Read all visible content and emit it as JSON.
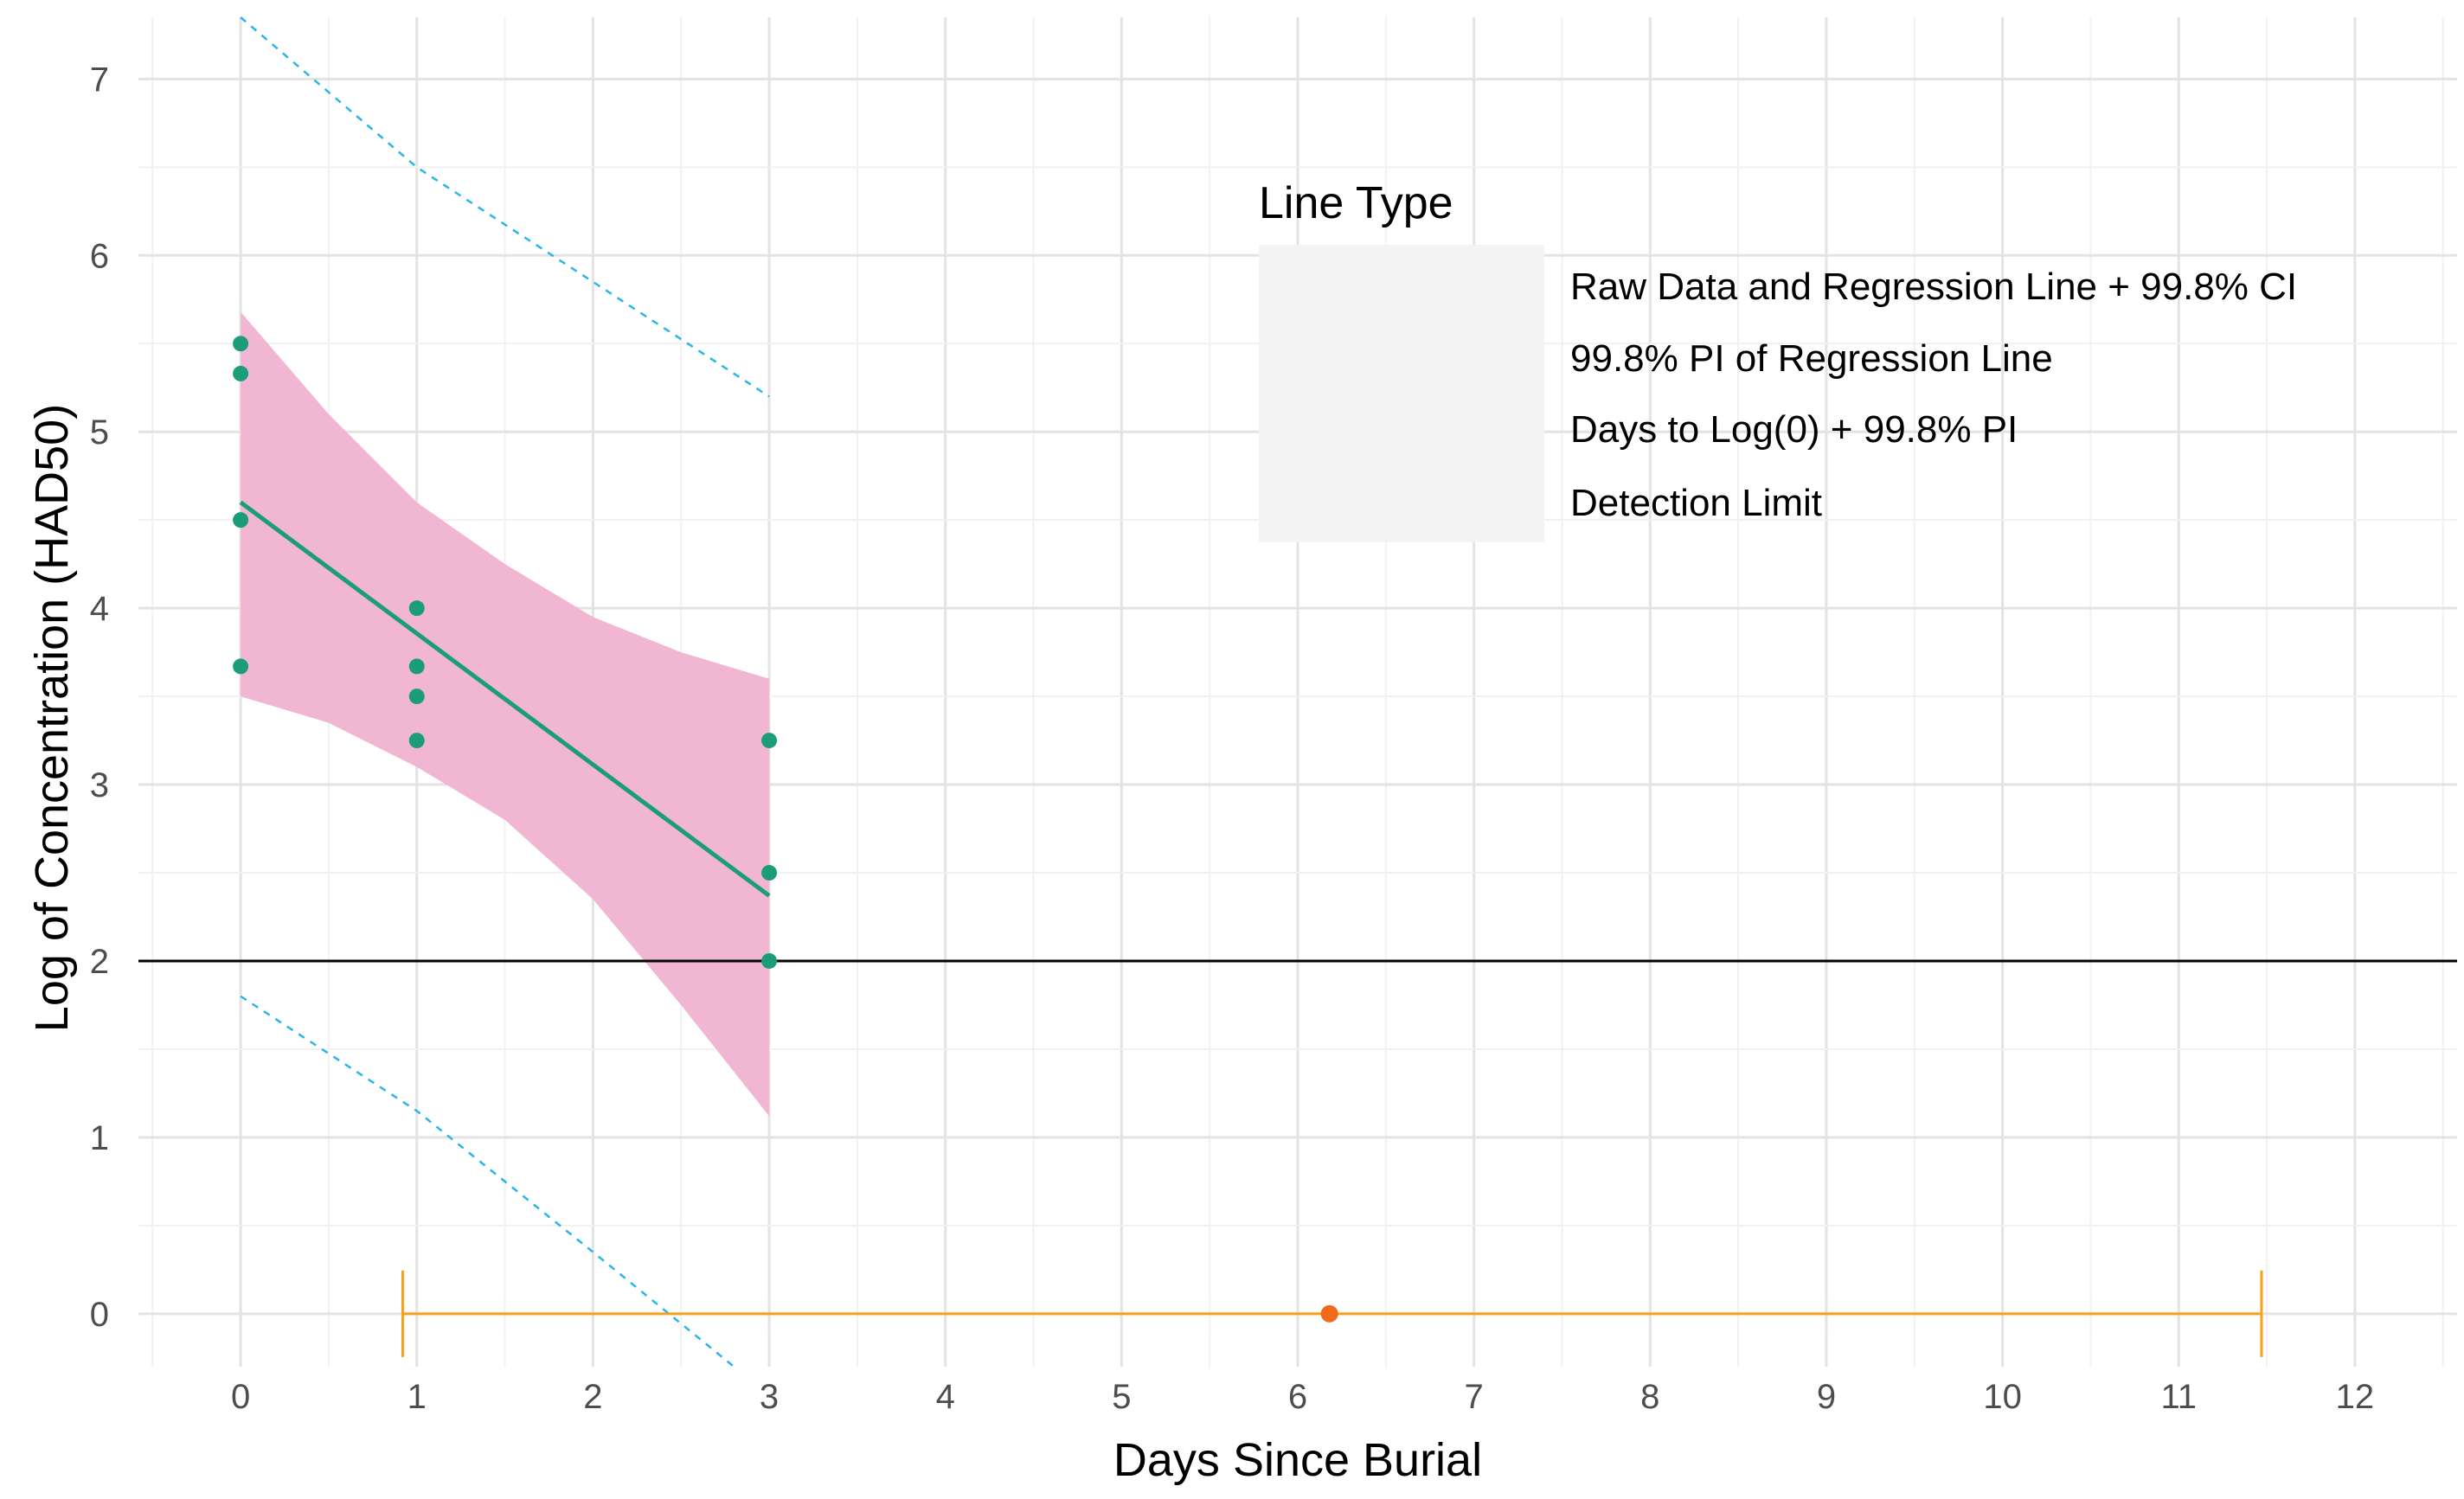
{
  "chart_data": {
    "type": "line",
    "xlabel": "Days Since Burial",
    "ylabel": "Log of Concentration (HAD50)",
    "xlim": [
      -0.58,
      12.58
    ],
    "ylim": [
      -0.3,
      7.35
    ],
    "x_ticks": [
      0,
      1,
      2,
      3,
      4,
      5,
      6,
      7,
      8,
      9,
      10,
      11,
      12
    ],
    "y_ticks": [
      0,
      1,
      2,
      3,
      4,
      5,
      6,
      7
    ],
    "grid": true,
    "legend": {
      "title": "Line Type",
      "placement": "top-right",
      "entries": [
        {
          "label": "Raw Data and Regression Line + 99.8% CI",
          "color": "#1b9e77",
          "fill": "#f1b6d2",
          "style": "solid-points"
        },
        {
          "label": "99.8% PI of Regression Line",
          "color": "#29b6e8",
          "style": "dashed"
        },
        {
          "label": "Days to Log(0) + 99.8% PI",
          "color": "#f7a11a",
          "style": "solid-points"
        },
        {
          "label": "Detection Limit",
          "color": "#000000",
          "style": "solid"
        }
      ]
    },
    "series": [
      {
        "name": "Raw Data and Regression Line + 99.8% CI",
        "kind": "points",
        "color": "#1b9e77",
        "x": [
          0,
          0,
          0,
          0,
          1,
          1,
          1,
          1,
          3,
          3,
          3
        ],
        "y": [
          5.5,
          5.33,
          4.5,
          3.67,
          4.0,
          3.67,
          3.5,
          3.25,
          3.25,
          2.5,
          2.0
        ]
      },
      {
        "name": "Raw Data and Regression Line + 99.8% CI",
        "kind": "regression_line",
        "color": "#1b9e77",
        "x": [
          0,
          3
        ],
        "y": [
          4.6,
          2.37
        ]
      },
      {
        "name": "Raw Data and Regression Line + 99.8% CI",
        "kind": "confidence_band",
        "color": "#f1b6d2",
        "x": [
          0,
          0.5,
          1,
          1.5,
          2,
          2.5,
          3
        ],
        "upper": [
          5.68,
          5.1,
          4.6,
          4.25,
          3.95,
          3.75,
          3.6
        ],
        "lower": [
          3.5,
          3.35,
          3.1,
          2.8,
          2.35,
          1.75,
          1.12
        ]
      },
      {
        "name": "99.8% PI of Regression Line",
        "kind": "dashed_line",
        "color": "#29b6e8",
        "x": [
          0,
          1,
          2,
          3
        ],
        "y": [
          7.35,
          6.5,
          5.85,
          5.2
        ]
      },
      {
        "name": "99.8% PI of Regression Line",
        "kind": "dashed_line",
        "color": "#29b6e8",
        "x": [
          0,
          1,
          2,
          2.8
        ],
        "y": [
          1.8,
          1.15,
          0.35,
          -0.3
        ]
      },
      {
        "name": "Days to Log(0) + 99.8% PI",
        "kind": "interval",
        "color": "#f7a11a",
        "point_color": "#f26b1d",
        "y": 0,
        "estimate": 6.18,
        "lower": 0.92,
        "upper": 11.47
      },
      {
        "name": "Detection Limit",
        "kind": "hline",
        "color": "#000000",
        "y": 2
      }
    ]
  }
}
